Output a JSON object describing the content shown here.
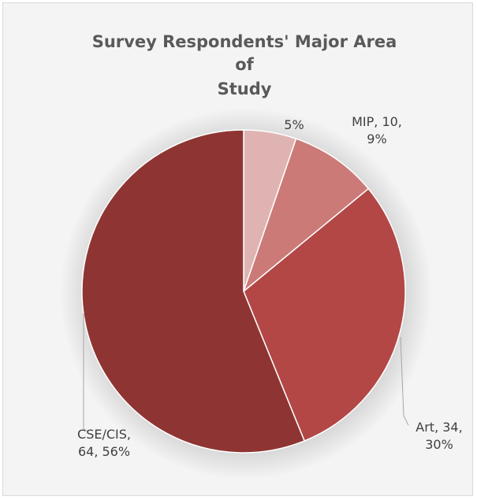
{
  "chart_data": {
    "type": "pie",
    "title_lines": [
      "Survey Respondents' Major Area",
      "of",
      "Study"
    ],
    "slices": [
      {
        "category": "",
        "value": 6,
        "percent_label": "5%",
        "label_text": [
          "5%"
        ],
        "color": "#e0b3b3"
      },
      {
        "category": "MIP",
        "value": 10,
        "percent_label": "9%",
        "label_text": [
          "MIP, 10,",
          "9%"
        ],
        "color": "#cc7a78"
      },
      {
        "category": "Art",
        "value": 34,
        "percent_label": "30%",
        "label_text": [
          "Art, 34,",
          "30%"
        ],
        "color": "#b24745"
      },
      {
        "category": "CSE/CIS",
        "value": 64,
        "percent_label": "56%",
        "label_text": [
          "CSE/CIS,",
          "64, 56%"
        ],
        "color": "#8e3533"
      }
    ],
    "legend": "none",
    "grid": false
  }
}
